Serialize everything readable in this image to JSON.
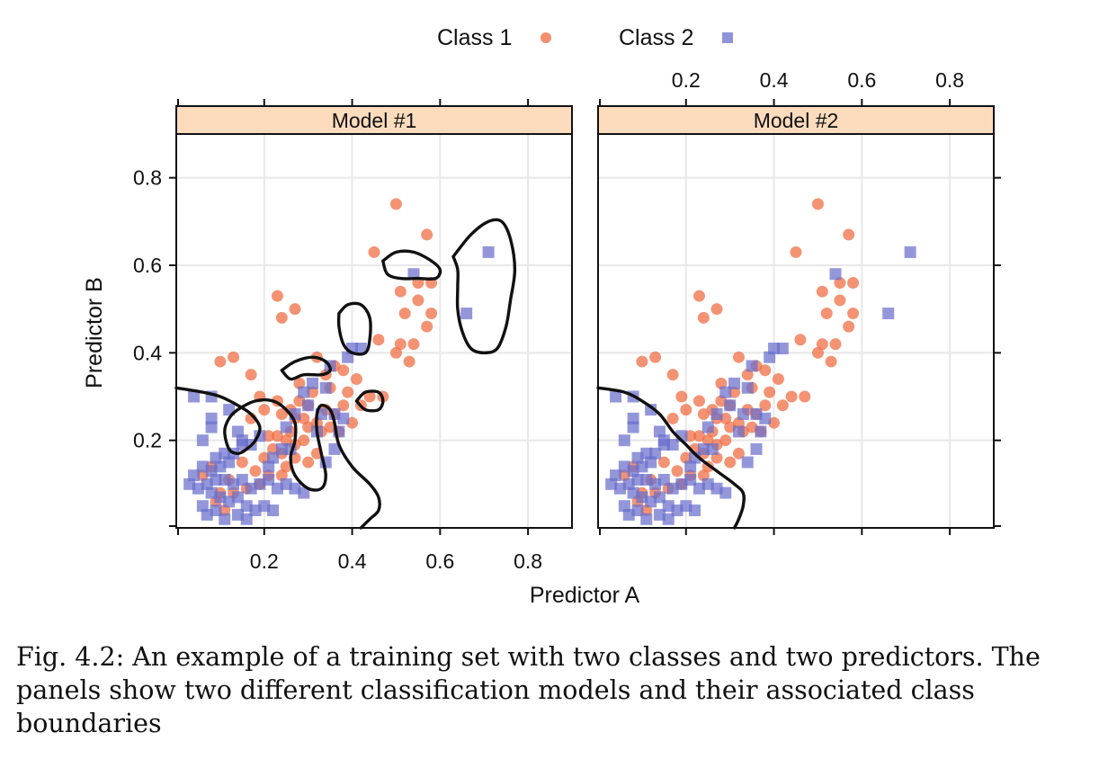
{
  "chart_data": {
    "type": "scatter",
    "xlabel": "Predictor A",
    "ylabel": "Predictor B",
    "xlim": [
      0.0,
      0.9
    ],
    "ylim": [
      0.0,
      0.9
    ],
    "xticks": [
      "0.2",
      "0.4",
      "0.6",
      "0.8"
    ],
    "yticks": [
      "0.2",
      "0.4",
      "0.6",
      "0.8"
    ],
    "tick_values": [
      0.2,
      0.4,
      0.6,
      0.8
    ],
    "grid": true,
    "legend_position": "top-center",
    "series": [
      {
        "name": "Class 1",
        "marker": "circle",
        "color": "#f0693f",
        "points": [
          [
            0.5,
            0.74
          ],
          [
            0.57,
            0.67
          ],
          [
            0.45,
            0.63
          ],
          [
            0.55,
            0.56
          ],
          [
            0.58,
            0.56
          ],
          [
            0.51,
            0.54
          ],
          [
            0.55,
            0.52
          ],
          [
            0.52,
            0.49
          ],
          [
            0.58,
            0.49
          ],
          [
            0.57,
            0.46
          ],
          [
            0.23,
            0.53
          ],
          [
            0.27,
            0.5
          ],
          [
            0.24,
            0.48
          ],
          [
            0.46,
            0.43
          ],
          [
            0.51,
            0.42
          ],
          [
            0.54,
            0.42
          ],
          [
            0.5,
            0.4
          ],
          [
            0.53,
            0.38
          ],
          [
            0.1,
            0.38
          ],
          [
            0.13,
            0.39
          ],
          [
            0.17,
            0.35
          ],
          [
            0.32,
            0.39
          ],
          [
            0.34,
            0.35
          ],
          [
            0.36,
            0.37
          ],
          [
            0.38,
            0.36
          ],
          [
            0.35,
            0.32
          ],
          [
            0.41,
            0.34
          ],
          [
            0.44,
            0.3
          ],
          [
            0.47,
            0.3
          ],
          [
            0.31,
            0.31
          ],
          [
            0.3,
            0.28
          ],
          [
            0.28,
            0.29
          ],
          [
            0.26,
            0.27
          ],
          [
            0.24,
            0.26
          ],
          [
            0.27,
            0.25
          ],
          [
            0.29,
            0.25
          ],
          [
            0.3,
            0.23
          ],
          [
            0.32,
            0.24
          ],
          [
            0.33,
            0.22
          ],
          [
            0.35,
            0.23
          ],
          [
            0.37,
            0.22
          ],
          [
            0.26,
            0.22
          ],
          [
            0.25,
            0.2
          ],
          [
            0.27,
            0.19
          ],
          [
            0.29,
            0.2
          ],
          [
            0.23,
            0.21
          ],
          [
            0.22,
            0.18
          ],
          [
            0.21,
            0.21
          ],
          [
            0.2,
            0.16
          ],
          [
            0.24,
            0.17
          ],
          [
            0.27,
            0.16
          ],
          [
            0.3,
            0.15
          ],
          [
            0.32,
            0.17
          ],
          [
            0.25,
            0.14
          ],
          [
            0.24,
            0.12
          ],
          [
            0.21,
            0.12
          ],
          [
            0.18,
            0.13
          ],
          [
            0.19,
            0.1
          ],
          [
            0.15,
            0.15
          ],
          [
            0.12,
            0.11
          ],
          [
            0.1,
            0.08
          ],
          [
            0.08,
            0.14
          ],
          [
            0.06,
            0.12
          ],
          [
            0.09,
            0.06
          ],
          [
            0.11,
            0.04
          ],
          [
            0.13,
            0.08
          ],
          [
            0.16,
            0.09
          ],
          [
            0.42,
            0.28
          ],
          [
            0.39,
            0.31
          ],
          [
            0.4,
            0.24
          ],
          [
            0.34,
            0.27
          ],
          [
            0.36,
            0.26
          ],
          [
            0.38,
            0.28
          ],
          [
            0.28,
            0.33
          ],
          [
            0.23,
            0.29
          ],
          [
            0.2,
            0.27
          ],
          [
            0.17,
            0.25
          ],
          [
            0.19,
            0.3
          ]
        ]
      },
      {
        "name": "Class 2",
        "marker": "square",
        "color": "#6a6fcc",
        "points": [
          [
            0.71,
            0.63
          ],
          [
            0.54,
            0.58
          ],
          [
            0.66,
            0.49
          ],
          [
            0.4,
            0.41
          ],
          [
            0.42,
            0.41
          ],
          [
            0.39,
            0.39
          ],
          [
            0.35,
            0.37
          ],
          [
            0.34,
            0.32
          ],
          [
            0.31,
            0.33
          ],
          [
            0.29,
            0.31
          ],
          [
            0.3,
            0.28
          ],
          [
            0.33,
            0.26
          ],
          [
            0.36,
            0.26
          ],
          [
            0.38,
            0.25
          ],
          [
            0.32,
            0.22
          ],
          [
            0.37,
            0.22
          ],
          [
            0.36,
            0.18
          ],
          [
            0.34,
            0.15
          ],
          [
            0.26,
            0.18
          ],
          [
            0.24,
            0.18
          ],
          [
            0.22,
            0.16
          ],
          [
            0.21,
            0.14
          ],
          [
            0.19,
            0.21
          ],
          [
            0.17,
            0.19
          ],
          [
            0.15,
            0.19
          ],
          [
            0.13,
            0.17
          ],
          [
            0.11,
            0.17
          ],
          [
            0.09,
            0.16
          ],
          [
            0.12,
            0.15
          ],
          [
            0.1,
            0.14
          ],
          [
            0.08,
            0.13
          ],
          [
            0.06,
            0.14
          ],
          [
            0.04,
            0.12
          ],
          [
            0.03,
            0.1
          ],
          [
            0.05,
            0.09
          ],
          [
            0.07,
            0.1
          ],
          [
            0.09,
            0.11
          ],
          [
            0.11,
            0.11
          ],
          [
            0.13,
            0.1
          ],
          [
            0.15,
            0.11
          ],
          [
            0.17,
            0.09
          ],
          [
            0.19,
            0.1
          ],
          [
            0.21,
            0.11
          ],
          [
            0.23,
            0.09
          ],
          [
            0.25,
            0.1
          ],
          [
            0.27,
            0.09
          ],
          [
            0.29,
            0.08
          ],
          [
            0.08,
            0.08
          ],
          [
            0.1,
            0.07
          ],
          [
            0.12,
            0.06
          ],
          [
            0.14,
            0.07
          ],
          [
            0.16,
            0.05
          ],
          [
            0.18,
            0.04
          ],
          [
            0.2,
            0.05
          ],
          [
            0.22,
            0.04
          ],
          [
            0.06,
            0.05
          ],
          [
            0.07,
            0.03
          ],
          [
            0.09,
            0.04
          ],
          [
            0.11,
            0.02
          ],
          [
            0.14,
            0.03
          ],
          [
            0.16,
            0.02
          ],
          [
            0.04,
            0.3
          ],
          [
            0.08,
            0.3
          ],
          [
            0.08,
            0.25
          ],
          [
            0.08,
            0.23
          ],
          [
            0.12,
            0.27
          ],
          [
            0.14,
            0.22
          ],
          [
            0.15,
            0.2
          ],
          [
            0.06,
            0.2
          ],
          [
            0.25,
            0.23
          ],
          [
            0.27,
            0.26
          ]
        ]
      }
    ],
    "panels": [
      {
        "title": "Model #1",
        "boundaries": [
          [
            [
              0.0,
              0.32
            ],
            [
              0.06,
              0.31
            ],
            [
              0.1,
              0.3
            ],
            [
              0.14,
              0.28
            ],
            [
              0.17,
              0.26
            ],
            [
              0.19,
              0.23
            ],
            [
              0.18,
              0.2
            ],
            [
              0.16,
              0.18
            ],
            [
              0.14,
              0.17
            ],
            [
              0.12,
              0.18
            ],
            [
              0.11,
              0.22
            ],
            [
              0.12,
              0.25
            ],
            [
              0.14,
              0.27
            ],
            [
              0.18,
              0.29
            ],
            [
              0.22,
              0.29
            ],
            [
              0.25,
              0.27
            ],
            [
              0.27,
              0.24
            ],
            [
              0.27,
              0.2
            ],
            [
              0.26,
              0.16
            ],
            [
              0.27,
              0.12
            ],
            [
              0.3,
              0.09
            ],
            [
              0.33,
              0.09
            ],
            [
              0.34,
              0.12
            ],
            [
              0.33,
              0.17
            ],
            [
              0.32,
              0.22
            ],
            [
              0.32,
              0.26
            ],
            [
              0.33,
              0.28
            ],
            [
              0.35,
              0.27
            ],
            [
              0.36,
              0.24
            ],
            [
              0.37,
              0.19
            ],
            [
              0.4,
              0.14
            ],
            [
              0.44,
              0.1
            ],
            [
              0.46,
              0.07
            ],
            [
              0.46,
              0.04
            ],
            [
              0.44,
              0.02
            ],
            [
              0.42,
              0.0
            ]
          ],
          [
            [
              0.24,
              0.36
            ],
            [
              0.27,
              0.38
            ],
            [
              0.31,
              0.39
            ],
            [
              0.34,
              0.38
            ],
            [
              0.35,
              0.36
            ],
            [
              0.33,
              0.35
            ],
            [
              0.29,
              0.35
            ],
            [
              0.26,
              0.34
            ],
            [
              0.24,
              0.36
            ]
          ],
          [
            [
              0.37,
              0.49
            ],
            [
              0.39,
              0.51
            ],
            [
              0.42,
              0.51
            ],
            [
              0.44,
              0.48
            ],
            [
              0.44,
              0.43
            ],
            [
              0.43,
              0.4
            ],
            [
              0.4,
              0.4
            ],
            [
              0.38,
              0.42
            ],
            [
              0.37,
              0.46
            ],
            [
              0.37,
              0.49
            ]
          ],
          [
            [
              0.41,
              0.29
            ],
            [
              0.43,
              0.31
            ],
            [
              0.46,
              0.31
            ],
            [
              0.47,
              0.29
            ],
            [
              0.46,
              0.27
            ],
            [
              0.43,
              0.27
            ],
            [
              0.41,
              0.29
            ]
          ],
          [
            [
              0.47,
              0.61
            ],
            [
              0.5,
              0.63
            ],
            [
              0.54,
              0.63
            ],
            [
              0.58,
              0.61
            ],
            [
              0.6,
              0.59
            ],
            [
              0.59,
              0.57
            ],
            [
              0.55,
              0.57
            ],
            [
              0.51,
              0.57
            ],
            [
              0.48,
              0.58
            ],
            [
              0.47,
              0.61
            ]
          ],
          [
            [
              0.63,
              0.62
            ],
            [
              0.67,
              0.67
            ],
            [
              0.71,
              0.7
            ],
            [
              0.74,
              0.7
            ],
            [
              0.76,
              0.66
            ],
            [
              0.77,
              0.59
            ],
            [
              0.76,
              0.52
            ],
            [
              0.75,
              0.46
            ],
            [
              0.73,
              0.41
            ],
            [
              0.7,
              0.4
            ],
            [
              0.67,
              0.41
            ],
            [
              0.65,
              0.45
            ],
            [
              0.64,
              0.5
            ],
            [
              0.64,
              0.55
            ],
            [
              0.64,
              0.59
            ],
            [
              0.63,
              0.62
            ]
          ]
        ]
      },
      {
        "title": "Model #2",
        "boundaries": [
          [
            [
              0.0,
              0.32
            ],
            [
              0.06,
              0.31
            ],
            [
              0.1,
              0.29
            ],
            [
              0.14,
              0.26
            ],
            [
              0.17,
              0.22
            ],
            [
              0.2,
              0.19
            ],
            [
              0.23,
              0.16
            ],
            [
              0.27,
              0.13
            ],
            [
              0.31,
              0.1
            ],
            [
              0.33,
              0.08
            ],
            [
              0.33,
              0.05
            ],
            [
              0.32,
              0.02
            ],
            [
              0.31,
              0.0
            ]
          ]
        ]
      }
    ],
    "axes": {
      "top_ticks_panel": 2,
      "right_ticks_panel": 2,
      "bottom_ticks_panel": 1,
      "left_ticks_panel": 1
    }
  },
  "caption": "Fig. 4.2: An example of a training set with two classes and two predictors. The panels show two different classification models and their associated class boundaries",
  "colors": {
    "class1": "#f0693f",
    "class2": "#6a6fcc",
    "strip_bg": "#fddcbe",
    "grid": "#e8e8e8",
    "boundary": "#111111"
  }
}
